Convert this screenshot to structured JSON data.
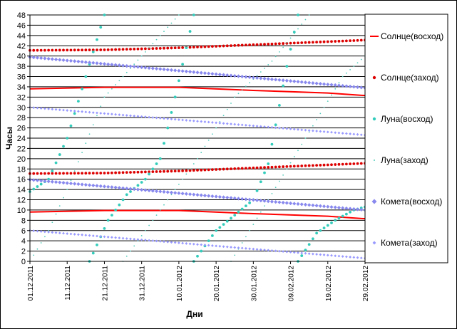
{
  "chart_data": {
    "type": "scatter",
    "title": "",
    "xlabel": "Дни",
    "ylabel": "Часы",
    "x_range": [
      "2011-12-01",
      "2012-02-29"
    ],
    "x_ticks": [
      "01.12.2011",
      "11.12.2011",
      "21.12.2011",
      "31.12.2011",
      "10.01.2012",
      "20.01.2012",
      "30.01.2012",
      "09.02.2012",
      "19.02.2012",
      "29.02.2012"
    ],
    "ylim": [
      0,
      48
    ],
    "y_ticks": [
      "0",
      "2",
      "4",
      "6",
      "8",
      "10",
      "12",
      "14",
      "16",
      "18",
      "20",
      "22",
      "24",
      "26",
      "28",
      "30",
      "32",
      "34",
      "36",
      "38",
      "40",
      "42",
      "44",
      "46",
      "48"
    ],
    "grid": "horizontal",
    "legend_position": "right",
    "series": [
      {
        "name": "Солнце(восход)",
        "color": "#ff0000",
        "style": "line",
        "points": [
          [
            "2011-12-01",
            9.6
          ],
          [
            "2011-12-21",
            9.9
          ],
          [
            "2012-01-10",
            9.9
          ],
          [
            "2012-01-30",
            9.3
          ],
          [
            "2012-02-19",
            8.8
          ],
          [
            "2012-02-29",
            8.3
          ]
        ]
      },
      {
        "name": "Солнце(заход)",
        "color": "#dd0000",
        "style": "diamond-dots",
        "points": [
          [
            "2011-12-01",
            17.1
          ],
          [
            "2011-12-21",
            17.2
          ],
          [
            "2012-01-10",
            17.6
          ],
          [
            "2012-01-30",
            18.2
          ],
          [
            "2012-02-19",
            18.8
          ],
          [
            "2012-02-29",
            19.1
          ]
        ]
      },
      {
        "name": "Луна(восход)",
        "color": "#33ccbb",
        "style": "dots",
        "segments": [
          [
            [
              "2011-12-01",
              13.6
            ],
            [
              "2011-12-06",
              16.0
            ],
            [
              "2011-12-11",
              24.0
            ],
            [
              "2011-12-16",
              36.0
            ],
            [
              "2011-12-21",
              48.0
            ]
          ],
          [
            [
              "2011-12-17",
              0.0
            ],
            [
              "2011-12-22",
              8.0
            ],
            [
              "2011-12-27",
              13.0
            ],
            [
              "2012-01-01",
              16.0
            ],
            [
              "2012-01-05",
              20.0
            ],
            [
              "2012-01-09",
              32.0
            ],
            [
              "2012-01-14",
              48.0
            ]
          ],
          [
            [
              "2012-01-14",
              0.0
            ],
            [
              "2012-01-20",
              6.0
            ],
            [
              "2012-01-25",
              9.0
            ],
            [
              "2012-01-30",
              12.0
            ],
            [
              "2012-02-03",
              19.0
            ],
            [
              "2012-02-08",
              38.0
            ],
            [
              "2012-02-11",
              48.0
            ]
          ],
          [
            [
              "2012-02-11",
              0.0
            ],
            [
              "2012-02-16",
              5.5
            ],
            [
              "2012-02-21",
              8.0
            ],
            [
              "2012-02-26",
              10.0
            ],
            [
              "2012-02-29",
              10.6
            ]
          ]
        ]
      },
      {
        "name": "Луна(заход)",
        "color": "#55ccbb",
        "style": "sparse-dots",
        "segments": [
          [
            [
              "2011-12-01",
              0.0
            ],
            [
              "2011-12-06",
              6.0
            ],
            [
              "2011-12-11",
              14.0
            ],
            [
              "2011-12-21",
              32.0
            ],
            [
              "2011-12-31",
              40.0
            ],
            [
              "2012-01-05",
              44.0
            ],
            [
              "2012-01-10",
              48.0
            ]
          ],
          [
            [
              "2011-12-26",
              0.0
            ],
            [
              "2012-01-05",
              10.0
            ],
            [
              "2012-01-15",
              20.0
            ],
            [
              "2012-01-25",
              32.0
            ],
            [
              "2012-02-04",
              39.0
            ],
            [
              "2012-02-14",
              48.0
            ]
          ],
          [
            [
              "2012-01-24",
              0.0
            ],
            [
              "2012-02-03",
              12.0
            ],
            [
              "2012-02-13",
              24.0
            ],
            [
              "2012-02-23",
              36.0
            ],
            [
              "2012-02-29",
              40.0
            ]
          ]
        ]
      },
      {
        "name": "Комета(восход)",
        "color": "#8888ee",
        "style": "large-diamonds",
        "points": [
          [
            "2011-12-01",
            15.9
          ],
          [
            "2012-02-29",
            10.0
          ]
        ],
        "points_2": [
          [
            "2011-12-01",
            39.8
          ],
          [
            "2012-02-29",
            33.8
          ]
        ]
      },
      {
        "name": "Комета(заход)",
        "color": "#9999ff",
        "style": "small-diamonds",
        "points": [
          [
            "2011-12-01",
            6.0
          ],
          [
            "2012-02-29",
            0.6
          ]
        ],
        "points_2": [
          [
            "2011-12-01",
            30.0
          ],
          [
            "2012-02-29",
            24.6
          ]
        ]
      }
    ]
  }
}
